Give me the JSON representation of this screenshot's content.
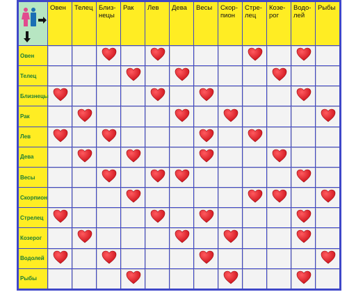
{
  "columns": [
    "Овен",
    "Телец",
    "Близ­нецы",
    "Рак",
    "Лев",
    "Дева",
    "Весы",
    "Скор­пион",
    "Стре­лец",
    "Козе­рог",
    "Водо­лей",
    "Рыбы"
  ],
  "rows": [
    {
      "label": "Овен",
      "hearts": [
        2,
        4,
        8,
        10
      ]
    },
    {
      "label": "Телец",
      "hearts": [
        3,
        5,
        9
      ]
    },
    {
      "label": "Близнецы",
      "hearts": [
        0,
        4,
        6,
        10
      ]
    },
    {
      "label": "Рак",
      "hearts": [
        1,
        5,
        7,
        11
      ]
    },
    {
      "label": "Лев",
      "hearts": [
        0,
        2,
        6,
        8
      ]
    },
    {
      "label": "Дева",
      "hearts": [
        1,
        3,
        6,
        9
      ]
    },
    {
      "label": "Весы",
      "hearts": [
        2,
        4,
        5,
        10
      ]
    },
    {
      "label": "Скорпион",
      "hearts": [
        3,
        8,
        9,
        11
      ]
    },
    {
      "label": "Стрелец",
      "hearts": [
        0,
        4,
        6,
        10
      ]
    },
    {
      "label": "Козерог",
      "hearts": [
        1,
        5,
        7,
        10
      ]
    },
    {
      "label": "Водолей",
      "hearts": [
        0,
        2,
        6,
        11
      ]
    },
    {
      "label": "Рыбы",
      "hearts": [
        3,
        7,
        10
      ]
    }
  ],
  "colors": {
    "frame": "#3f47c8",
    "header_bg": "#ffed23",
    "corner_bg": "#b7e6c2",
    "row_label": "#1d7d33",
    "cell_bg": "#f3f3f3",
    "heart": "#d0161e"
  },
  "icons": {
    "corner": "woman-man-compatibility-icon",
    "mark": "heart-icon"
  }
}
